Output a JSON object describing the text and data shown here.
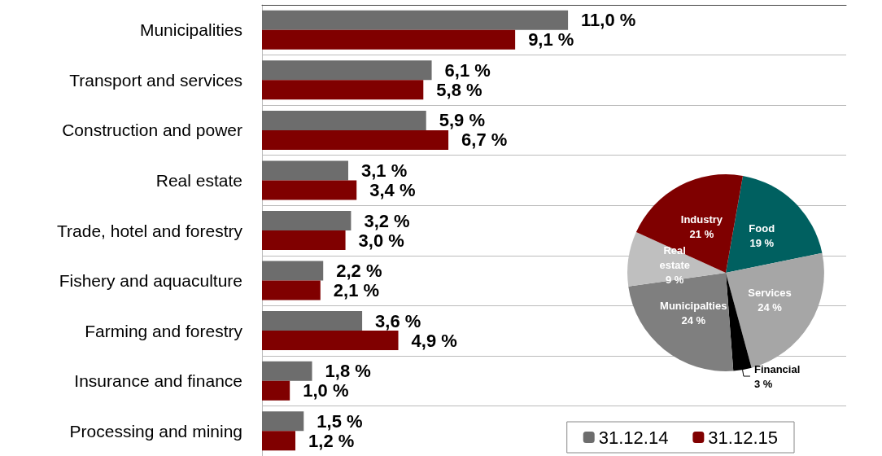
{
  "chart_data": [
    {
      "type": "bar",
      "orientation": "horizontal",
      "categories": [
        "Municipalities",
        "Transport and services",
        "Construction and power",
        "Real estate",
        "Trade, hotel and forestry",
        "Fishery and aquaculture",
        "Farming and forestry",
        "Insurance and finance",
        "Processing and mining"
      ],
      "series": [
        {
          "name": "31.12.14",
          "color": "#6d6d6d",
          "values": [
            11.0,
            6.1,
            5.9,
            3.1,
            3.2,
            2.2,
            3.6,
            1.8,
            1.5
          ],
          "value_labels": [
            "11,0 %",
            "6,1 %",
            "5,9 %",
            "3,1 %",
            "3,2 %",
            "2,2 %",
            "3,6 %",
            "1,8 %",
            "1,5 %"
          ]
        },
        {
          "name": "31.12.15",
          "color": "#800000",
          "values": [
            9.1,
            5.8,
            6.7,
            3.4,
            3.0,
            2.1,
            4.9,
            1.0,
            1.2
          ],
          "value_labels": [
            "9,1 %",
            "5,8 %",
            "6,7 %",
            "3,4 %",
            "3,0 %",
            "2,1 %",
            "4,9 %",
            "1,0 %",
            "1,2 %"
          ]
        }
      ],
      "xlim": [
        0,
        21
      ],
      "tick_labels": "y",
      "grid": "y",
      "legend": "bottom right"
    },
    {
      "type": "pie",
      "categories": [
        "Food",
        "Services",
        "Financial",
        "Municipalties",
        "Real estate",
        "Industry"
      ],
      "values": [
        19,
        24,
        3,
        24,
        9,
        21
      ],
      "colors": [
        "#006060",
        "#a6a6a6",
        "#000000",
        "#7f7f7f",
        "#bfbfbf",
        "#7f0000"
      ],
      "value_labels": [
        "19 %",
        "24 %",
        "3 %",
        "24 %",
        "9 %",
        "21 %"
      ]
    }
  ]
}
